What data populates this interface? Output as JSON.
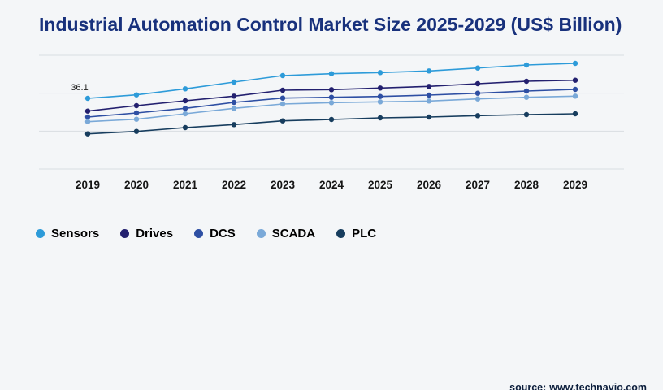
{
  "title": "Industrial Automation Control Market Size 2025-2029 (US$ Billion)",
  "source": {
    "label": "source:",
    "value": "www.technavio.com"
  },
  "annotation": {
    "series": "Sensors",
    "category": "2019",
    "text": "36.1"
  },
  "colors": {
    "title_text": "#18317c",
    "grid": "#d9dde2",
    "axis_label": "#151515",
    "background": "#f4f6f8"
  },
  "chart_data": {
    "type": "line",
    "title": "Industrial Automation Control Market Size 2025-2029 (US$ Billion)",
    "xlabel": "",
    "ylabel": "",
    "categories": [
      "2019",
      "2020",
      "2021",
      "2022",
      "2023",
      "2024",
      "2025",
      "2026",
      "2027",
      "2028",
      "2029"
    ],
    "series": [
      {
        "name": "Sensors",
        "color": "#2d9bd9",
        "values": [
          36.1,
          37.4,
          39.6,
          42.1,
          44.5,
          45.2,
          45.6,
          46.2,
          47.3,
          48.4,
          49.0
        ]
      },
      {
        "name": "Drives",
        "color": "#23206f",
        "values": [
          31.4,
          33.4,
          35.2,
          36.9,
          39.1,
          39.3,
          39.9,
          40.5,
          41.5,
          42.4,
          42.8
        ]
      },
      {
        "name": "DCS",
        "color": "#2e4fa3",
        "values": [
          29.2,
          30.7,
          32.4,
          34.6,
          36.2,
          36.5,
          36.8,
          37.3,
          38.0,
          38.8,
          39.4
        ]
      },
      {
        "name": "SCADA",
        "color": "#7aa9d8",
        "values": [
          27.5,
          28.4,
          30.4,
          32.4,
          34.0,
          34.5,
          34.8,
          35.1,
          35.9,
          36.5,
          36.9
        ]
      },
      {
        "name": "PLC",
        "color": "#173d5e",
        "values": [
          23.0,
          23.9,
          25.3,
          26.4,
          27.8,
          28.3,
          28.9,
          29.2,
          29.7,
          30.1,
          30.4
        ]
      }
    ],
    "ylim": [
      10,
      52
    ],
    "grid": true,
    "gridline_count": 4,
    "legend_position": "bottom",
    "data_labels": [
      {
        "series": "Sensors",
        "category": "2019",
        "label": "36.1"
      }
    ]
  }
}
